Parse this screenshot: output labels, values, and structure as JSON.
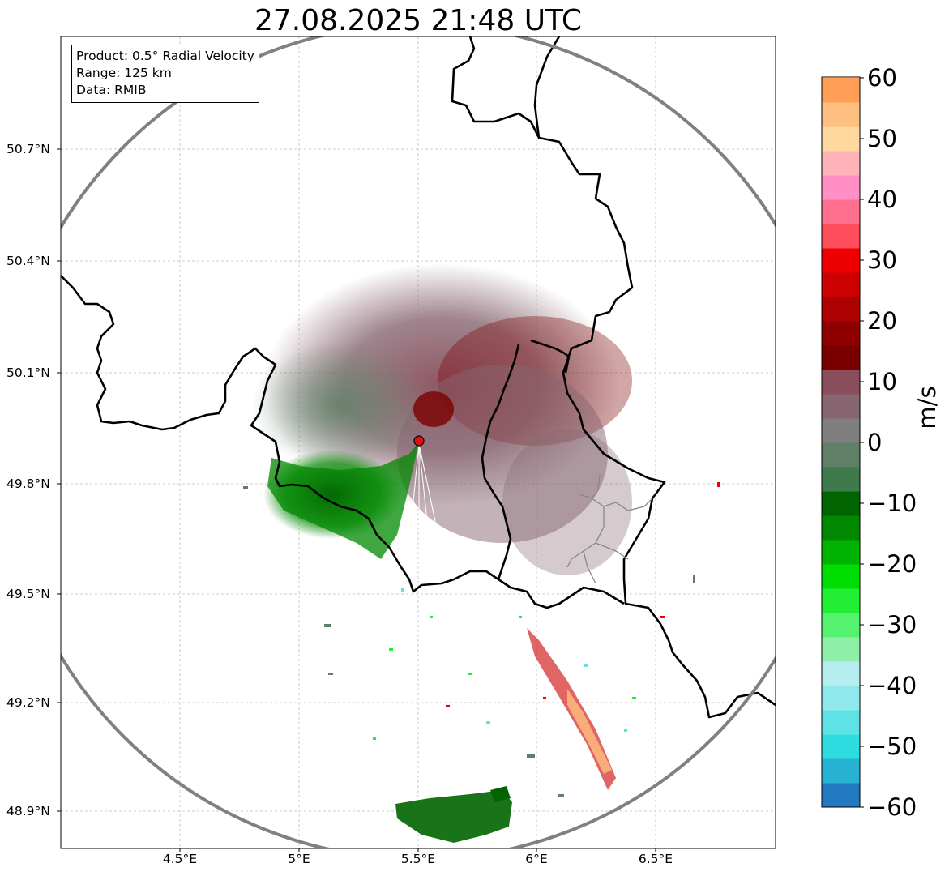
{
  "title": "27.08.2025 21:48 UTC",
  "info": {
    "product": "Product: 0.5° Radial Velocity",
    "range": "Range: 125 km",
    "source": "Data: RMIB"
  },
  "axes": {
    "y_ticks": [
      "50.7°N",
      "50.4°N",
      "50.1°N",
      "49.8°N",
      "49.5°N",
      "49.2°N",
      "48.9°N"
    ],
    "x_ticks": [
      "4.5°E",
      "5°E",
      "5.5°E",
      "6°E",
      "6.5°E"
    ]
  },
  "colorbar": {
    "unit": "m/s",
    "ticks": [
      "60",
      "50",
      "40",
      "30",
      "20",
      "10",
      "0",
      "−10",
      "−20",
      "−30",
      "−40",
      "−50",
      "−60"
    ],
    "range": [
      -60,
      60
    ],
    "colors": [
      "#2379bf",
      "#27b1d2",
      "#2ddcdf",
      "#5fe2e5",
      "#8ee8ec",
      "#b6eef0",
      "#8ef0a8",
      "#55f26f",
      "#22ee33",
      "#00dd00",
      "#00b300",
      "#008800",
      "#006500",
      "#3e7a4c",
      "#5f7f67",
      "#7f7f7f",
      "#886671",
      "#8a4d5c",
      "#7a0000",
      "#8f0000",
      "#ad0000",
      "#cc0000",
      "#ee0000",
      "#ff4d5c",
      "#ff6f8d",
      "#ff8fc4",
      "#ffb3b8",
      "#ffd8a0",
      "#ffbf80",
      "#ff9f55"
    ]
  },
  "map": {
    "radar_site": "red-dot",
    "colors": {
      "border": "#000000",
      "subregion": "#888888",
      "range_ring": "#808080",
      "grid": "#bdbdbd"
    }
  }
}
